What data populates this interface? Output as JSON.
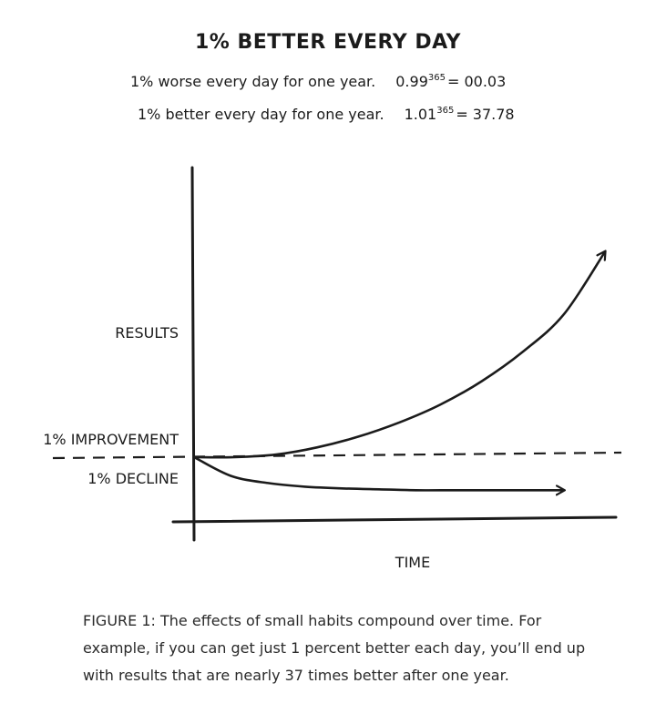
{
  "title": "1% BETTER EVERY DAY",
  "equations": {
    "worse": {
      "label": "1% worse every day for one year.",
      "base": "0.99",
      "exponent": "365",
      "result": "= 00.03"
    },
    "better": {
      "label": "1% better every day for one year.",
      "base": "1.01",
      "exponent": "365",
      "result": "= 37.78"
    }
  },
  "chart_data": {
    "type": "line",
    "title": "1% BETTER EVERY DAY",
    "xlabel": "TIME",
    "ylabel": "RESULTS",
    "baseline_label_above": "1% IMPROVEMENT",
    "baseline_label_below": "1% DECLINE",
    "x": [
      0,
      0.1,
      0.2,
      0.3,
      0.4,
      0.5,
      0.6,
      0.7,
      0.8,
      0.9,
      1.0
    ],
    "xlim": [
      0,
      1
    ],
    "ylim": [
      0,
      3.6
    ],
    "baseline_value": 1.0,
    "series": [
      {
        "id": "improvement",
        "values": [
          1.0,
          1.0,
          1.03,
          1.11,
          1.23,
          1.39,
          1.59,
          1.85,
          2.18,
          2.6,
          3.3
        ]
      },
      {
        "id": "decline",
        "values": [
          1.0,
          0.79,
          0.71,
          0.67,
          0.65,
          0.64,
          0.63,
          0.63,
          0.63,
          0.63,
          0.63
        ]
      }
    ],
    "series_color": "#1b1b1b",
    "grid": false,
    "legend": "none"
  },
  "caption": "FIGURE 1: The effects of small habits compound over time. For example, if you can get just 1 percent better each day, you’ll end up with results that are nearly 37 times better after one year."
}
